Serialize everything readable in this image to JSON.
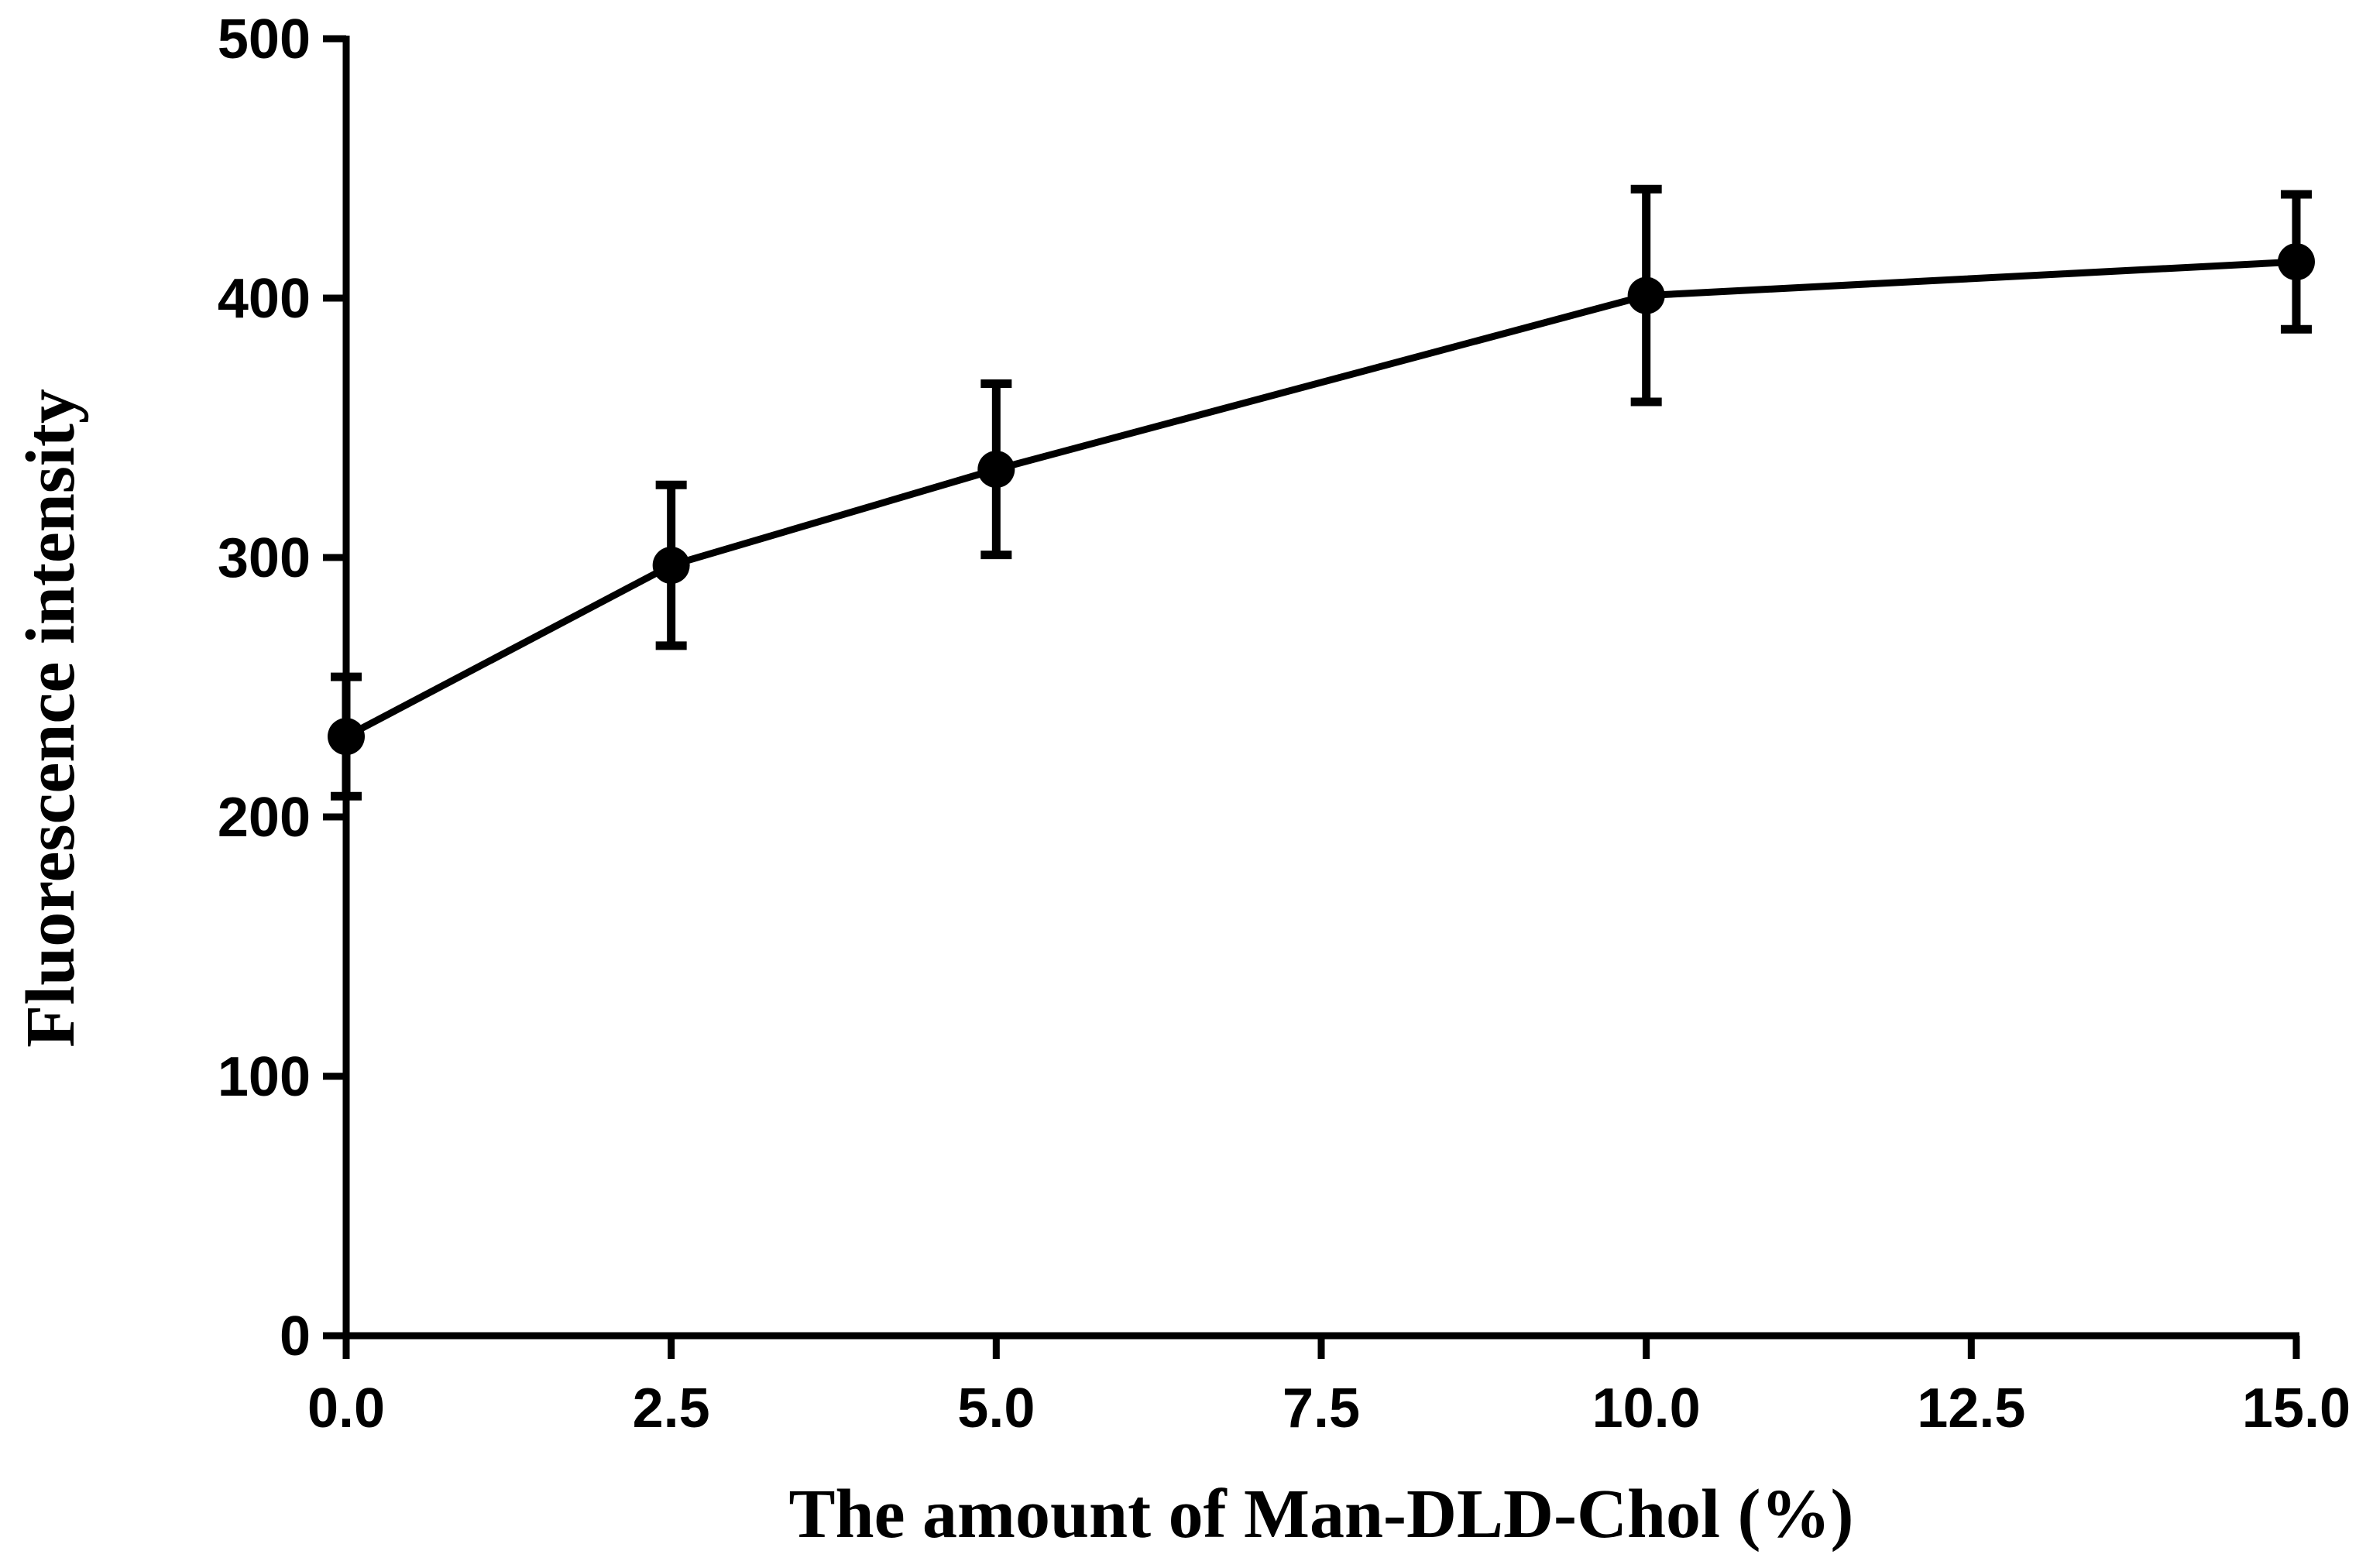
{
  "chart_data": {
    "type": "line",
    "title": "",
    "xlabel": "The amount of Man-DLD-Chol (%)",
    "ylabel": "Fluorescence intensity",
    "xlim": [
      0,
      15
    ],
    "ylim": [
      0,
      500
    ],
    "x_ticks": [
      "0.0",
      "2.5",
      "5.0",
      "7.5",
      "10.0",
      "12.5",
      "15.0"
    ],
    "x_tick_values": [
      0,
      2.5,
      5,
      7.5,
      10,
      12.5,
      15
    ],
    "y_ticks": [
      "0",
      "100",
      "200",
      "300",
      "400",
      "500"
    ],
    "y_tick_values": [
      0,
      100,
      200,
      300,
      400,
      500
    ],
    "grid": false,
    "series": [
      {
        "name": "Fluorescence intensity",
        "x": [
          0,
          2.5,
          5,
          10,
          15
        ],
        "values": [
          231,
          297,
          334,
          401,
          414
        ],
        "error": [
          23,
          31,
          33,
          41,
          26
        ]
      }
    ]
  },
  "colors": {
    "line": "#000000",
    "axis": "#000000"
  }
}
